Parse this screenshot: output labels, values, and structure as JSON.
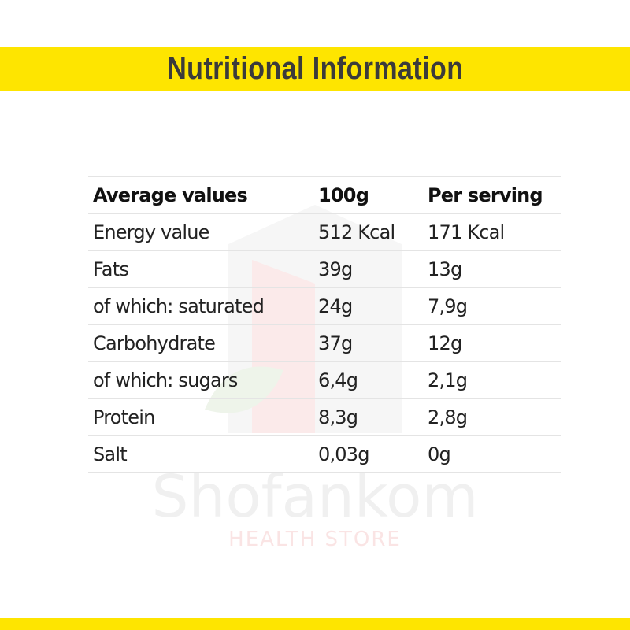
{
  "header": {
    "title": "Nutritional Information"
  },
  "table": {
    "columns": [
      "Average values",
      "100g",
      "Per serving"
    ],
    "rows": [
      [
        "Energy value",
        "512 Kcal",
        "171 Kcal"
      ],
      [
        "Fats",
        "39g",
        "13g"
      ],
      [
        "of which: saturated",
        "24g",
        "7,9g"
      ],
      [
        "Carbohydrate",
        "37g",
        "12g"
      ],
      [
        "of which: sugars",
        "6,4g",
        "2,1g"
      ],
      [
        "Protein",
        "8,3g",
        "2,8g"
      ],
      [
        "Salt",
        "0,03g",
        "0g"
      ]
    ]
  },
  "watermark": {
    "name": "Shofankom",
    "tagline": "HEALTH STORE"
  }
}
